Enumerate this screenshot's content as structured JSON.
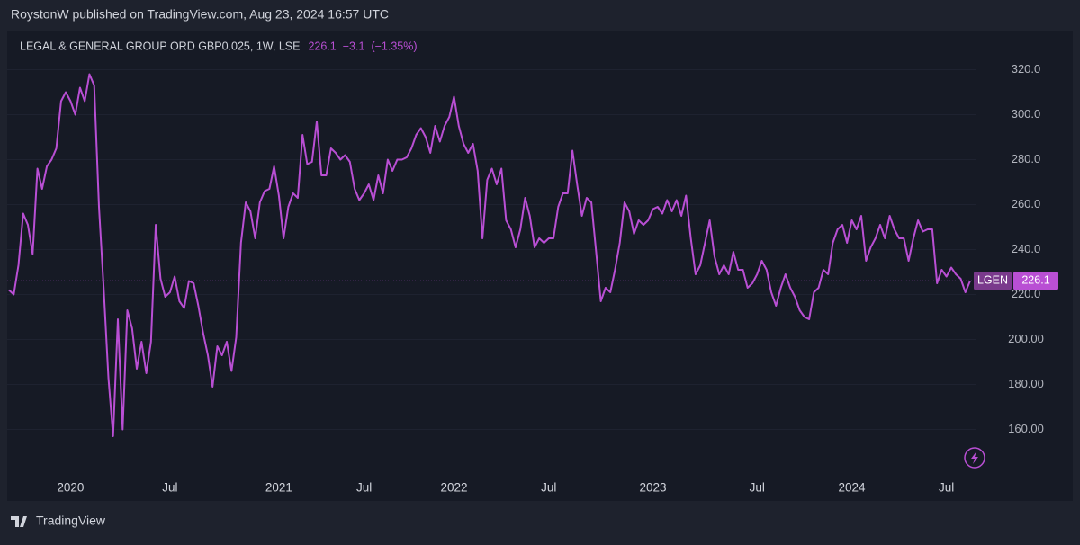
{
  "header": {
    "published": "RoystonW published on TradingView.com, Aug 23, 2024 16:57 UTC"
  },
  "footer": {
    "brand": "TradingView"
  },
  "chart_data": {
    "type": "line",
    "title": "LEGAL & GENERAL GROUP ORD GBP0.025, 1W, LSE",
    "change": "−3.1",
    "change_percent": "(−1.35%)",
    "categories": [
      null,
      null,
      null,
      null,
      null,
      null,
      null,
      null,
      null,
      null,
      null,
      null,
      null,
      "2020",
      null,
      null,
      null,
      null,
      null,
      null,
      null,
      null,
      null,
      null,
      null,
      null,
      null,
      null,
      null,
      null,
      null,
      null,
      null,
      null,
      "Jul",
      null,
      null,
      null,
      null,
      null,
      null,
      null,
      null,
      null,
      null,
      null,
      null,
      null,
      null,
      null,
      null,
      null,
      null,
      null,
      null,
      null,
      null,
      "2021",
      null,
      null,
      null,
      null,
      null,
      null,
      null,
      null,
      null,
      null,
      null,
      null,
      null,
      null,
      null,
      null,
      null,
      "Jul",
      null,
      null,
      null,
      null,
      null,
      null,
      null,
      null,
      null,
      null,
      null,
      null,
      null,
      null,
      null,
      null,
      null,
      null,
      "2022",
      null,
      null,
      null,
      null,
      null,
      null,
      null,
      null,
      null,
      null,
      null,
      null,
      null,
      null,
      null,
      null,
      null,
      null,
      null,
      "Jul",
      null,
      null,
      null,
      null,
      null,
      null,
      null,
      null,
      null,
      null,
      null,
      null,
      null,
      null,
      null,
      null,
      null,
      null,
      null,
      null,
      null,
      "2023",
      null,
      null,
      null,
      null,
      null,
      null,
      null,
      null,
      null,
      null,
      null,
      null,
      null,
      null,
      null,
      null,
      null,
      null,
      null,
      null,
      null,
      "Jul",
      null,
      null,
      null,
      null,
      null,
      null,
      null,
      null,
      null,
      null,
      null,
      null,
      null,
      null,
      null,
      null,
      null,
      null,
      null,
      "2024",
      null,
      null,
      null,
      null,
      null,
      null,
      null,
      null,
      null,
      null,
      null,
      null,
      null,
      null,
      null,
      null,
      null,
      null,
      null,
      "Jul",
      null,
      null,
      null,
      null,
      null
    ],
    "series": [
      {
        "name": "LGEN",
        "color": "#b94fd4",
        "values": [
          222,
          220,
          233,
          256,
          251,
          238,
          276,
          267,
          277,
          280,
          285,
          306,
          310,
          306,
          300,
          312,
          306,
          318,
          313,
          259,
          223,
          183,
          157,
          209,
          160,
          213,
          205,
          187,
          199,
          185,
          199,
          251,
          227,
          219,
          221,
          228,
          217,
          214,
          226,
          225,
          215,
          203,
          193,
          179,
          197,
          193,
          199,
          186,
          201,
          243,
          261,
          257,
          245,
          261,
          266,
          267,
          277,
          264,
          245,
          259,
          265,
          263,
          291,
          278,
          279,
          297,
          273,
          273,
          285,
          283,
          280,
          282,
          279,
          267,
          262,
          265,
          269,
          262,
          273,
          265,
          280,
          275,
          280,
          280,
          281,
          285,
          291,
          294,
          290,
          283,
          295,
          288,
          295,
          299,
          308,
          295,
          287,
          283,
          287,
          275,
          245,
          271,
          276,
          269,
          276,
          253,
          249,
          241,
          249,
          263,
          255,
          241,
          245,
          243,
          245,
          245,
          259,
          265,
          265,
          284,
          269,
          255,
          263,
          261,
          239,
          217,
          223,
          221,
          231,
          243,
          261,
          257,
          247,
          253,
          251,
          253,
          258,
          259,
          256,
          262,
          257,
          262,
          255,
          264,
          245,
          229,
          233,
          243,
          253,
          237,
          229,
          233,
          229,
          239,
          231,
          231,
          223,
          225,
          229,
          235,
          231,
          221,
          215,
          223,
          229,
          223,
          219,
          213,
          210,
          209,
          221,
          223,
          231,
          229,
          243,
          249,
          251,
          243,
          253,
          249,
          255,
          235,
          241,
          245,
          251,
          245,
          255,
          249,
          245,
          245,
          235,
          245,
          253,
          248,
          249,
          249,
          225,
          231,
          228,
          232,
          229,
          227,
          221,
          226.1
        ]
      }
    ],
    "ylim": [
      139,
      337
    ],
    "yticks": [
      {
        "value": 160,
        "label": "160.00"
      },
      {
        "value": 180,
        "label": "180.00"
      },
      {
        "value": 200,
        "label": "200.00"
      },
      {
        "value": 220,
        "label": "220.0"
      },
      {
        "value": 240,
        "label": "240.0"
      },
      {
        "value": 260,
        "label": "260.0"
      },
      {
        "value": 280,
        "label": "280.0"
      },
      {
        "value": 300,
        "label": "300.0"
      },
      {
        "value": 320,
        "label": "320.0"
      }
    ],
    "grid": true
  }
}
